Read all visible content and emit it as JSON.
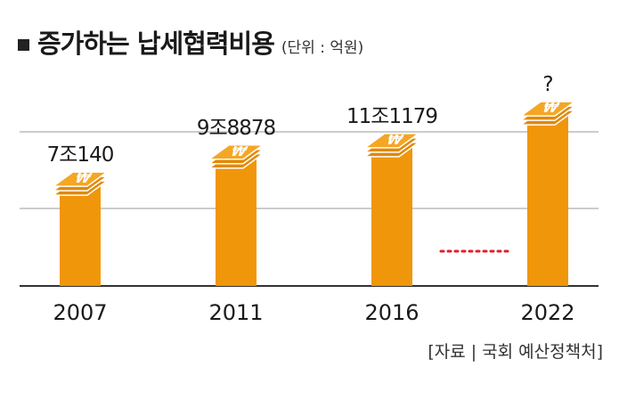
{
  "header": {
    "title": "증가하는 납세협력비용",
    "unit": "(단위 : 억원)"
  },
  "source": "[자료 | 국회 예산정책처]",
  "colors": {
    "bar": "#F0960A",
    "coin": "#F5A623",
    "dots": "#E0202A",
    "grid": "#999999"
  },
  "chart_data": {
    "type": "bar",
    "categories": [
      "2007",
      "2011",
      "2016",
      "2022"
    ],
    "values": [
      70140,
      98878,
      111179,
      null
    ],
    "value_labels": [
      "7조140",
      "9조8878",
      "11조1179",
      "?"
    ],
    "gap_marker": "dotted line between 2016 and 2022",
    "ylim": [
      0,
      150000
    ],
    "grid": true,
    "xlabel": "",
    "ylabel": ""
  }
}
